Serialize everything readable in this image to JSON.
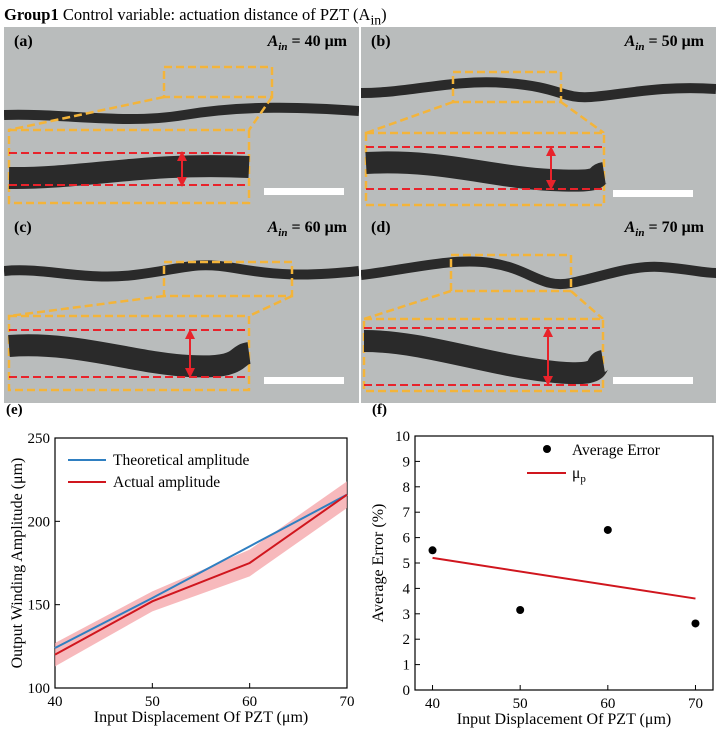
{
  "header": {
    "group": "Group1",
    "text": "Control variable: actuation distance of PZT (A",
    "sub": "in",
    "close": ")"
  },
  "panels": [
    {
      "label": "(a)",
      "amp_symbol": "A",
      "amp_sub": "in",
      "amp_value": "= 40 μm"
    },
    {
      "label": "(b)",
      "amp_symbol": "A",
      "amp_sub": "in",
      "amp_value": "= 50 μm"
    },
    {
      "label": "(c)",
      "amp_symbol": "A",
      "amp_sub": "in",
      "amp_value": "= 60 μm"
    },
    {
      "label": "(d)",
      "amp_symbol": "A",
      "amp_sub": "in",
      "amp_value": "= 70 μm"
    }
  ],
  "colors": {
    "panel_bg": "#b9bcbc",
    "fiber": "#2a2a2a",
    "zoom_box": "#f3b43a",
    "red_dash": "#e8232b",
    "arrow": "#e8232b",
    "scale_bar": "#ffffff",
    "theory": "#2f7fc1",
    "actual": "#d0161e",
    "band": "#f4a1a6"
  },
  "chart_data": [
    {
      "label": "(e)",
      "type": "line",
      "xlabel": "Input Displacement Of PZT (μm)",
      "ylabel": "Output Winding Amplitude (μm)",
      "xlim": [
        40,
        70
      ],
      "ylim": [
        100,
        250
      ],
      "xticks": [
        40,
        50,
        60,
        70
      ],
      "yticks": [
        100,
        150,
        200,
        250
      ],
      "legend_position": "top-left",
      "series": [
        {
          "name": "Theoretical amplitude",
          "x": [
            40,
            50,
            60,
            70
          ],
          "y": [
            124,
            154,
            185,
            216
          ]
        },
        {
          "name": "Actual amplitude",
          "x": [
            40,
            50,
            60,
            70
          ],
          "y": [
            120,
            152,
            175,
            216
          ],
          "band_low": [
            113,
            146,
            167,
            208
          ],
          "band_high": [
            127,
            158,
            183,
            224
          ]
        }
      ]
    },
    {
      "label": "(f)",
      "type": "scatter",
      "xlabel": "Input Displacement Of PZT (μm)",
      "ylabel": "Average Error (%)",
      "xlim": [
        38,
        72
      ],
      "ylim": [
        0,
        10
      ],
      "xticks": [
        40,
        50,
        60,
        70
      ],
      "yticks": [
        0,
        1,
        2,
        3,
        4,
        5,
        6,
        7,
        8,
        9,
        10
      ],
      "legend_position": "top-right",
      "series": [
        {
          "name": "Average Error",
          "x": [
            40,
            50,
            60,
            70
          ],
          "y": [
            5.5,
            3.15,
            6.3,
            2.62
          ]
        },
        {
          "name": "μ",
          "name_sub": "p",
          "type": "line",
          "x": [
            40,
            70
          ],
          "y": [
            5.2,
            3.6
          ]
        }
      ]
    }
  ]
}
